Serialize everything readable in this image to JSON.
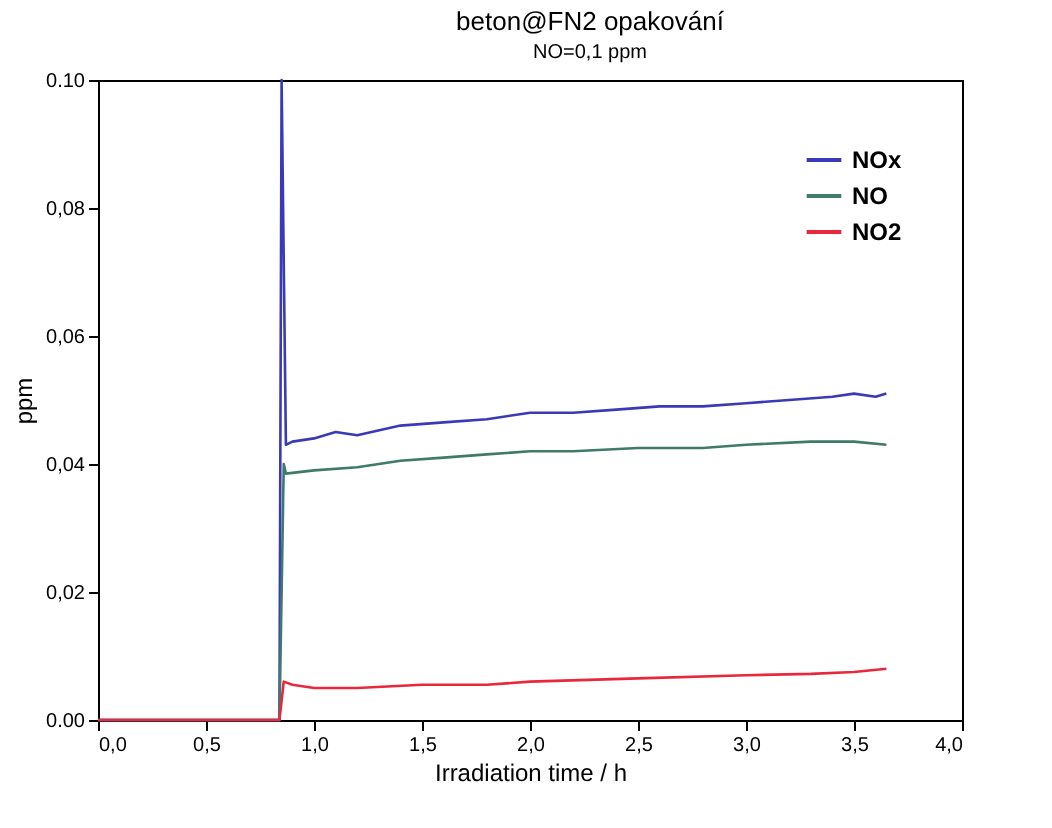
{
  "chart_data": {
    "type": "line",
    "title": "beton@FN2 opakování",
    "annotations": [
      "NO=0,1 ppm"
    ],
    "xlabel": "Irradiation time / h",
    "ylabel": "ppm",
    "xlim": [
      0,
      4
    ],
    "ylim": [
      0,
      0.1
    ],
    "xticks": [
      {
        "value": 0,
        "label": "0,0"
      },
      {
        "value": 0.5,
        "label": "0,5"
      },
      {
        "value": 1,
        "label": "1,0"
      },
      {
        "value": 1.5,
        "label": "1,5"
      },
      {
        "value": 2,
        "label": "2,0"
      },
      {
        "value": 2.5,
        "label": "2,5"
      },
      {
        "value": 3,
        "label": "3,0"
      },
      {
        "value": 3.5,
        "label": "3,5"
      },
      {
        "value": 4,
        "label": "4,0"
      }
    ],
    "yticks": [
      {
        "value": 0,
        "label": "0.00"
      },
      {
        "value": 0.02,
        "label": "0,02"
      },
      {
        "value": 0.04,
        "label": "0,04"
      },
      {
        "value": 0.06,
        "label": "0,06"
      },
      {
        "value": 0.08,
        "label": "0,08"
      },
      {
        "value": 0.1,
        "label": "0.10"
      }
    ],
    "grid": false,
    "legend": "top right",
    "series": [
      {
        "name": "NOx",
        "color": "#3a3ab8",
        "x": [
          0,
          0.4,
          0.84,
          0.85,
          0.87,
          0.9,
          1.0,
          1.1,
          1.2,
          1.4,
          1.6,
          1.8,
          2.0,
          2.2,
          2.4,
          2.6,
          2.8,
          3.0,
          3.2,
          3.4,
          3.5,
          3.6,
          3.65
        ],
        "values": [
          0,
          0,
          0,
          0.1,
          0.043,
          0.0435,
          0.044,
          0.045,
          0.0445,
          0.046,
          0.0465,
          0.047,
          0.048,
          0.048,
          0.0485,
          0.049,
          0.049,
          0.0495,
          0.05,
          0.0505,
          0.051,
          0.0505,
          0.051
        ]
      },
      {
        "name": "NO",
        "color": "#3f7a6a",
        "x": [
          0,
          0.84,
          0.86,
          0.87,
          1.0,
          1.2,
          1.4,
          1.6,
          1.8,
          2.0,
          2.2,
          2.5,
          2.8,
          3.0,
          3.3,
          3.5,
          3.65
        ],
        "values": [
          0,
          0,
          0.04,
          0.0385,
          0.039,
          0.0395,
          0.0405,
          0.041,
          0.0415,
          0.042,
          0.042,
          0.0425,
          0.0425,
          0.043,
          0.0435,
          0.0435,
          0.043
        ]
      },
      {
        "name": "NO2",
        "color": "#e8283c",
        "x": [
          0,
          0.84,
          0.86,
          0.9,
          1.0,
          1.2,
          1.5,
          1.8,
          2.0,
          2.5,
          3.0,
          3.3,
          3.5,
          3.65
        ],
        "values": [
          0,
          0,
          0.006,
          0.0055,
          0.005,
          0.005,
          0.0055,
          0.0055,
          0.006,
          0.0065,
          0.007,
          0.0072,
          0.0075,
          0.008
        ]
      }
    ]
  }
}
